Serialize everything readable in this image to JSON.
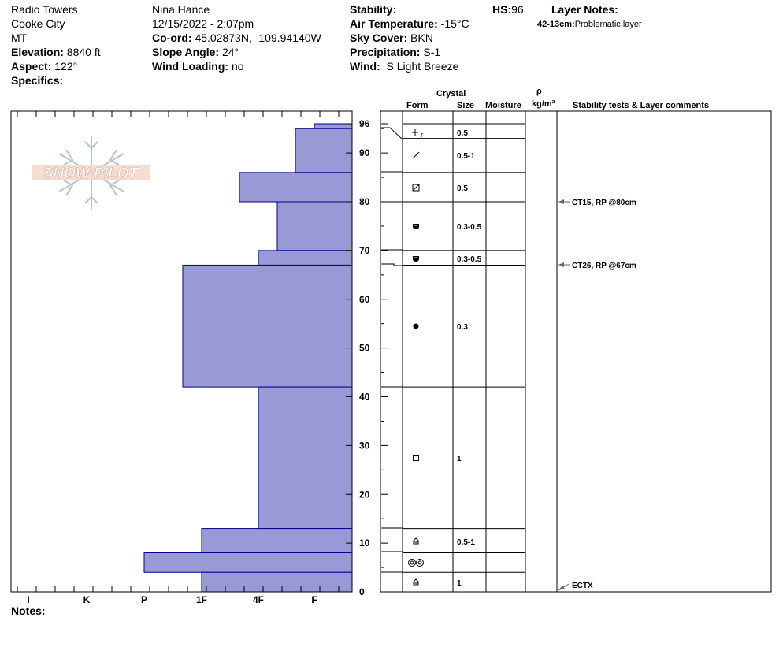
{
  "header": {
    "location": "Radio Towers",
    "city": "Cooke City",
    "state": "MT",
    "elevation_label": "Elevation:",
    "elevation": "8840 ft",
    "aspect_label": "Aspect:",
    "aspect": "122°",
    "specifics_label": "Specifics:",
    "observer": "Nina Hance",
    "datetime": "12/15/2022 - 2:07pm",
    "coord_label": "Co-ord:",
    "coord": "45.02873N, -109.94140W",
    "slope_label": "Slope Angle:",
    "slope": "24°",
    "wind_loading_label": "Wind Loading:",
    "wind_loading": "no",
    "stability_label": "Stability:",
    "air_temp_label": "Air Temperature:",
    "air_temp": "-15°C",
    "sky_label": "Sky Cover:",
    "sky": "BKN",
    "precip_label": "Precipitation:",
    "precip": "S-1",
    "wind_label": "Wind:",
    "wind": "S Light Breeze",
    "hs_label": "HS:",
    "hs": "96",
    "layer_notes_label": "Layer Notes:",
    "layer_note_range": "42-13cm:",
    "layer_note_text": "Problematic layer"
  },
  "logo_text": "SNOW PILOT",
  "notes_label": "Notes:",
  "table_headers": {
    "crystal": "Crystal",
    "form": "Form",
    "size": "Size",
    "moisture": "Moisture",
    "rho": "ρ",
    "density_unit": "kg/m³",
    "stability": "Stability tests & Layer comments"
  },
  "colors": {
    "hardness_fill": "#9999d6",
    "hardness_stroke": "#00008b"
  },
  "chart_data": {
    "type": "bar",
    "orientation": "horizontal",
    "title": "",
    "xlabel": "",
    "ylabel": "",
    "hardness_scale": [
      "I",
      "K",
      "P",
      "1F",
      "4F",
      "F"
    ],
    "ylim": [
      0,
      96
    ],
    "y_ticks": [
      0,
      10,
      20,
      30,
      40,
      50,
      60,
      70,
      80,
      90,
      96
    ],
    "layers": [
      {
        "top": 96,
        "bottom": 95,
        "hardness": "F"
      },
      {
        "top": 95,
        "bottom": 86,
        "hardness": "F+"
      },
      {
        "top": 86,
        "bottom": 80,
        "hardness": "4F+"
      },
      {
        "top": 80,
        "bottom": 70,
        "hardness": "4F-"
      },
      {
        "top": 70,
        "bottom": 67,
        "hardness": "4F"
      },
      {
        "top": 67,
        "bottom": 42,
        "hardness": "1F+"
      },
      {
        "top": 42,
        "bottom": 13,
        "hardness": "4F"
      },
      {
        "top": 13,
        "bottom": 8,
        "hardness": "1F"
      },
      {
        "top": 8,
        "bottom": 4,
        "hardness": "P"
      },
      {
        "top": 4,
        "bottom": 0,
        "hardness": "1F"
      }
    ],
    "crystal_layers": [
      {
        "top": 96,
        "bottom": 93,
        "form": "+r",
        "size": "0.5"
      },
      {
        "top": 93,
        "bottom": 86,
        "form": "/",
        "size": "0.5-1"
      },
      {
        "top": 86,
        "bottom": 80,
        "form": "⊠",
        "size": "0.5"
      },
      {
        "top": 80,
        "bottom": 70,
        "form": "facet-rounded",
        "size": "0.3-0.5"
      },
      {
        "top": 70,
        "bottom": 67,
        "form": "facet-rounded",
        "size": "0.3-0.5"
      },
      {
        "top": 67,
        "bottom": 42,
        "form": "●",
        "size": "0.3"
      },
      {
        "top": 42,
        "bottom": 13,
        "form": "□",
        "size": "1"
      },
      {
        "top": 13,
        "bottom": 8,
        "form": "depth-hoar",
        "size": "0.5-1"
      },
      {
        "top": 8,
        "bottom": 4,
        "form": "◎◎",
        "size": ""
      },
      {
        "top": 4,
        "bottom": 0,
        "form": "depth-hoar",
        "size": "1"
      }
    ],
    "stability_tests": [
      {
        "depth": 80,
        "text": "CT15, RP @80cm"
      },
      {
        "depth": 67,
        "text": "CT26, RP @67cm"
      },
      {
        "depth": 0,
        "text": "ECTX"
      }
    ]
  }
}
